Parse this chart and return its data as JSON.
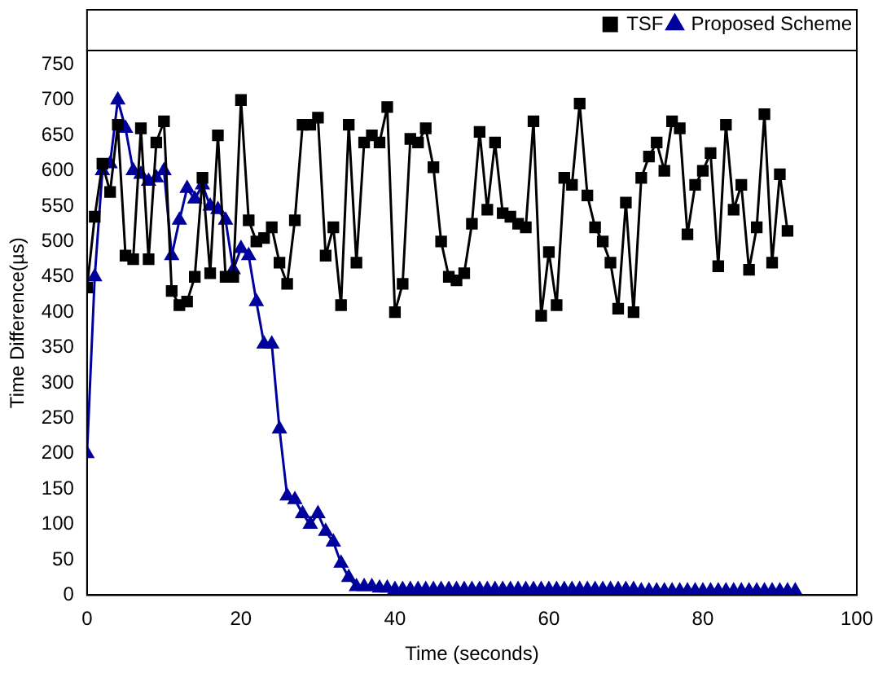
{
  "chart_data": {
    "type": "line",
    "xlabel": "Time (seconds)",
    "ylabel": "Time Difference(µs)",
    "xlim": [
      0,
      100
    ],
    "xticks": [
      0,
      20,
      40,
      60,
      80,
      100
    ],
    "ylim": [
      0,
      770
    ],
    "yticks": [
      0,
      50,
      100,
      150,
      200,
      250,
      300,
      350,
      400,
      450,
      500,
      550,
      600,
      650,
      700,
      750
    ],
    "grid": false,
    "legend": "top right",
    "line_style": "solid",
    "x": [
      0,
      1,
      2,
      3,
      4,
      5,
      6,
      7,
      8,
      9,
      10,
      11,
      12,
      13,
      14,
      15,
      16,
      17,
      18,
      19,
      20,
      21,
      22,
      23,
      24,
      25,
      26,
      27,
      28,
      29,
      30,
      31,
      32,
      33,
      34,
      35,
      36,
      37,
      38,
      39,
      40,
      41,
      42,
      43,
      44,
      45,
      46,
      47,
      48,
      49,
      50,
      51,
      52,
      53,
      54,
      55,
      56,
      57,
      58,
      59,
      60,
      61,
      62,
      63,
      64,
      65,
      66,
      67,
      68,
      69,
      70,
      71,
      72,
      73,
      74,
      75,
      76,
      77,
      78,
      79,
      80,
      81,
      82,
      83,
      84,
      85,
      86,
      87,
      88,
      89,
      90,
      91,
      92
    ],
    "series": [
      {
        "name": "TSF",
        "color": "#000000",
        "marker": "square",
        "values": [
          435,
          535,
          610,
          570,
          665,
          480,
          475,
          660,
          475,
          640,
          670,
          430,
          410,
          415,
          450,
          590,
          455,
          650,
          450,
          450,
          700,
          530,
          500,
          505,
          520,
          470,
          440,
          530,
          665,
          665,
          675,
          480,
          520,
          410,
          665,
          470,
          640,
          650,
          640,
          690,
          400,
          440,
          645,
          640,
          660,
          605,
          500,
          450,
          445,
          455,
          525,
          655,
          545,
          640,
          540,
          535,
          525,
          520,
          670,
          395,
          485,
          410,
          590,
          580,
          695,
          565,
          520,
          500,
          470,
          405,
          555,
          400,
          590,
          620,
          640,
          600,
          670,
          660,
          510,
          580,
          600,
          625,
          465,
          665,
          545,
          580,
          460,
          520,
          680,
          470,
          595,
          515,
          null
        ]
      },
      {
        "name": "Proposed Scheme",
        "color": "#00009c",
        "marker": "triangle",
        "values": [
          200,
          450,
          600,
          610,
          700,
          660,
          600,
          595,
          585,
          590,
          600,
          480,
          530,
          575,
          560,
          580,
          550,
          545,
          530,
          460,
          490,
          480,
          415,
          355,
          355,
          235,
          140,
          135,
          115,
          100,
          115,
          90,
          75,
          45,
          25,
          12,
          12,
          12,
          10,
          10,
          8,
          8,
          8,
          8,
          8,
          8,
          8,
          8,
          8,
          8,
          8,
          8,
          8,
          8,
          8,
          8,
          8,
          8,
          8,
          8,
          8,
          8,
          8,
          8,
          8,
          8,
          8,
          8,
          8,
          8,
          8,
          8,
          6,
          6,
          6,
          6,
          6,
          6,
          6,
          6,
          6,
          6,
          6,
          6,
          6,
          6,
          6,
          6,
          6,
          6,
          6,
          6,
          6
        ]
      }
    ]
  }
}
